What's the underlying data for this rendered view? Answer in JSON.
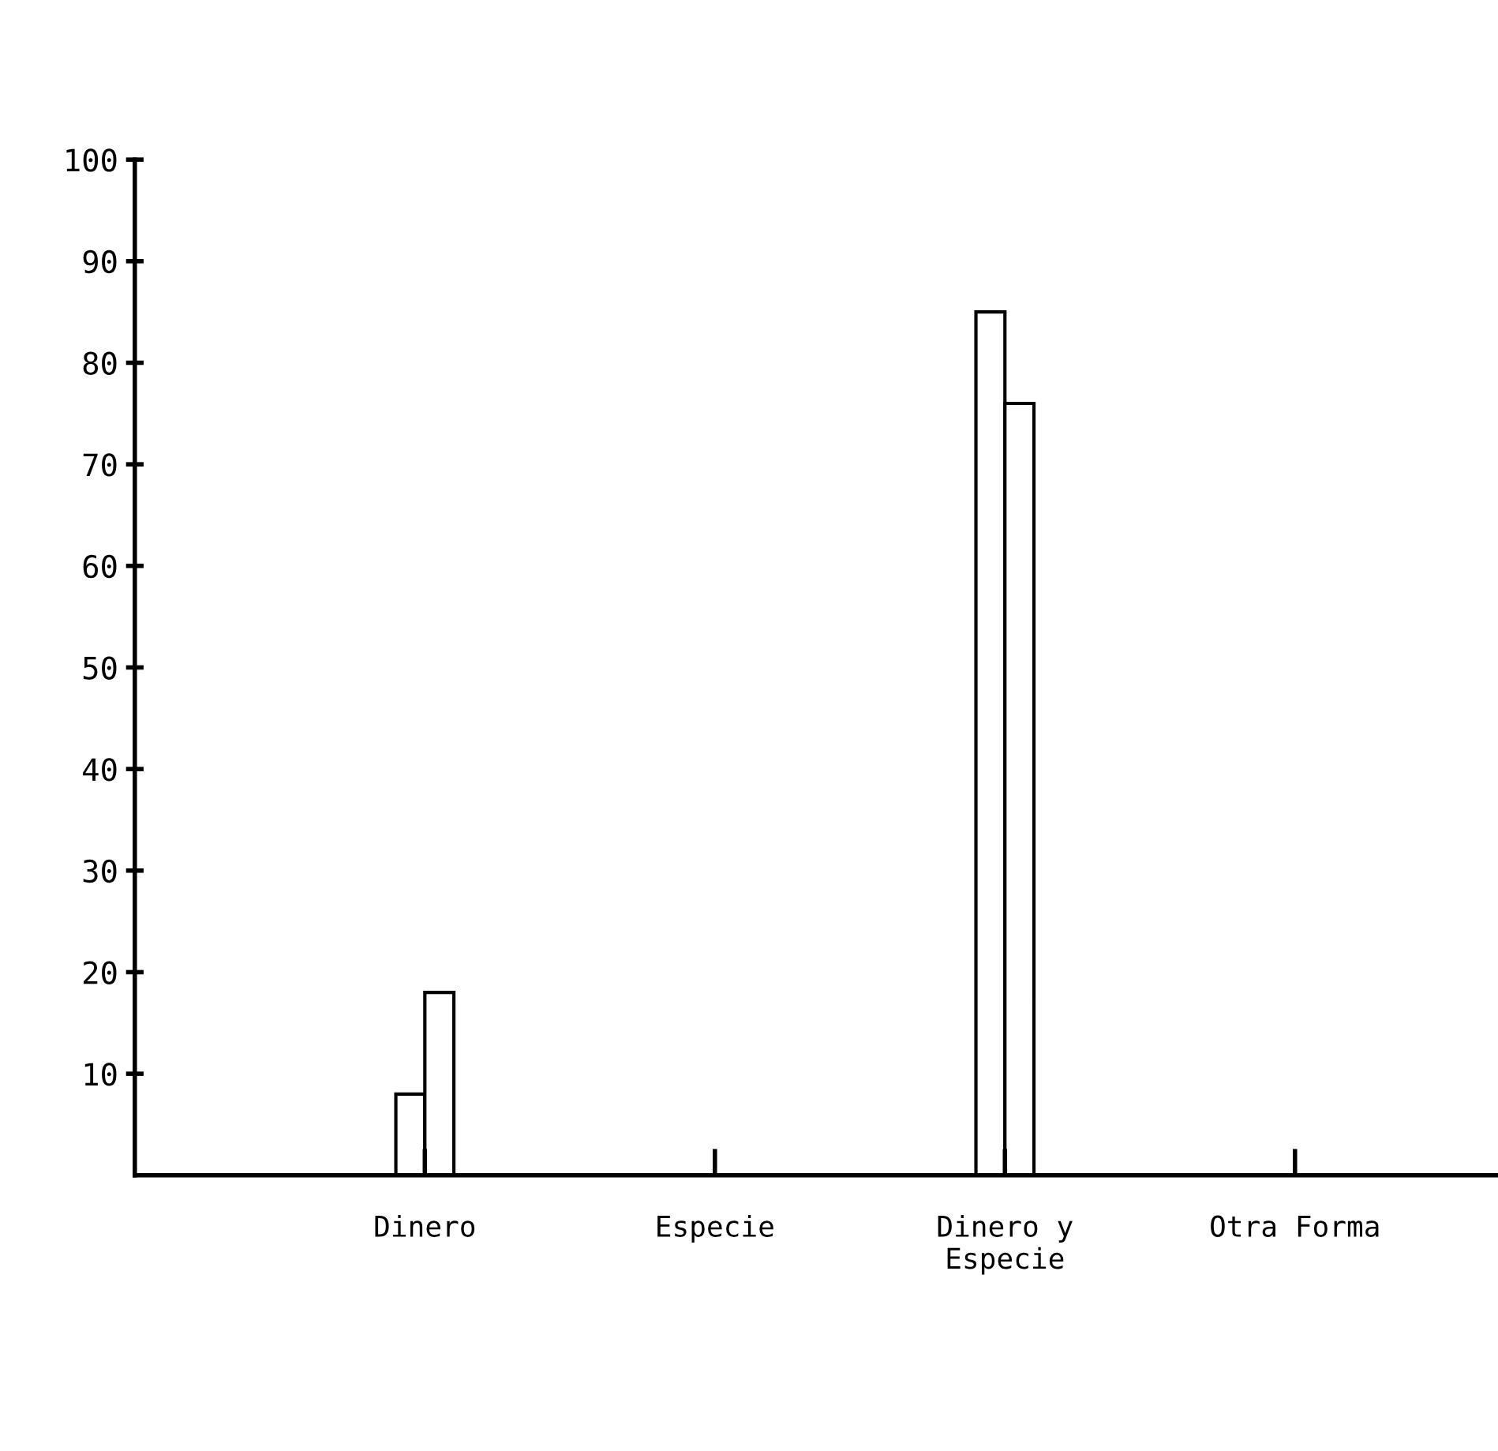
{
  "chart_data": {
    "type": "bar",
    "categories": [
      "Dinero",
      "Especie",
      "Dinero y\nEspecie",
      "Otra Forma"
    ],
    "series": [
      {
        "color": "#ffffff",
        "values": [
          8,
          null,
          85,
          null
        ]
      },
      {
        "color": "#ffffff",
        "values": [
          18,
          null,
          76,
          null
        ]
      }
    ],
    "ylim": [
      0,
      100
    ],
    "yticks": [
      10,
      20,
      30,
      40,
      50,
      60,
      70,
      80,
      90,
      100
    ],
    "grid": false,
    "legend": false
  }
}
